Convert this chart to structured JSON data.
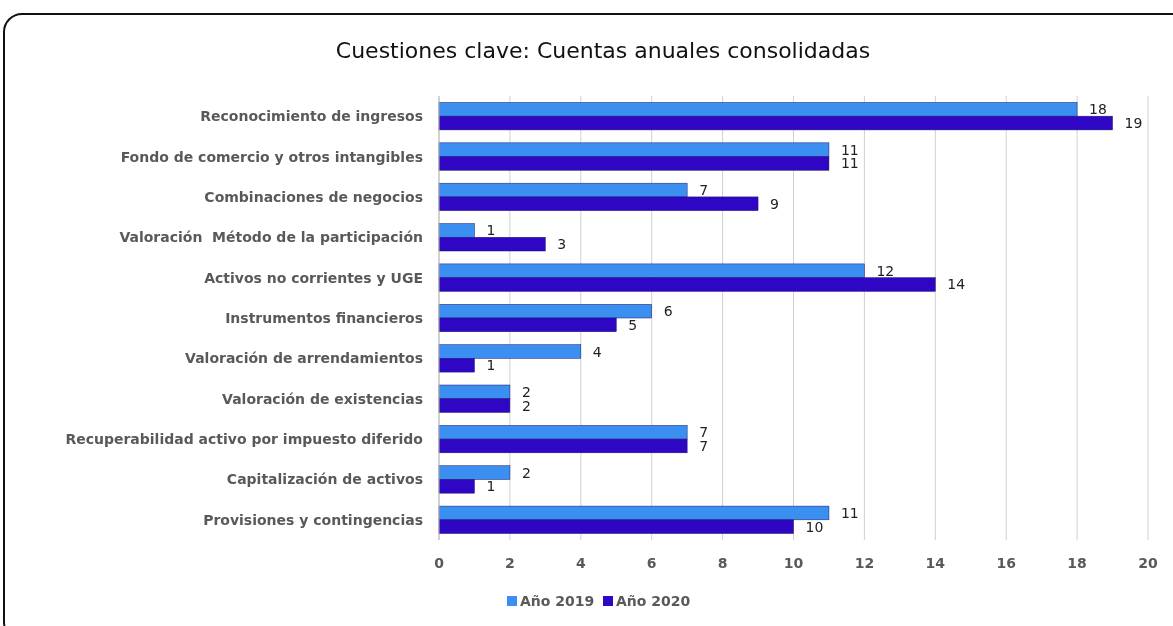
{
  "chart_data": {
    "type": "bar",
    "orientation": "horizontal",
    "title": "Cuestiones clave: Cuentas anuales consolidadas",
    "categories": [
      "Reconocimiento de ingresos",
      "Fondo de comercio y otros intangibles",
      "Combinaciones de negocios",
      "Valoración  Método de la participación",
      "Activos no corrientes y UGE",
      "Instrumentos financieros",
      "Valoración de arrendamientos",
      "Valoración de existencias",
      "Recuperabilidad activo por impuesto diferido",
      "Capitalización de activos",
      "Provisiones y contingencias"
    ],
    "series": [
      {
        "name": "Año 2019",
        "color": "#3b8ff0",
        "values": [
          18,
          11,
          7,
          1,
          12,
          6,
          4,
          2,
          7,
          2,
          11
        ]
      },
      {
        "name": "Año 2020",
        "color": "#2f06c4",
        "values": [
          19,
          11,
          9,
          3,
          14,
          5,
          1,
          2,
          7,
          1,
          10
        ]
      }
    ],
    "xlim": [
      0,
      20
    ],
    "xticks": [
      0,
      2,
      4,
      6,
      8,
      10,
      12,
      14,
      16,
      18,
      20
    ],
    "grid": "x",
    "legend": "bottom",
    "data_labels": true
  }
}
